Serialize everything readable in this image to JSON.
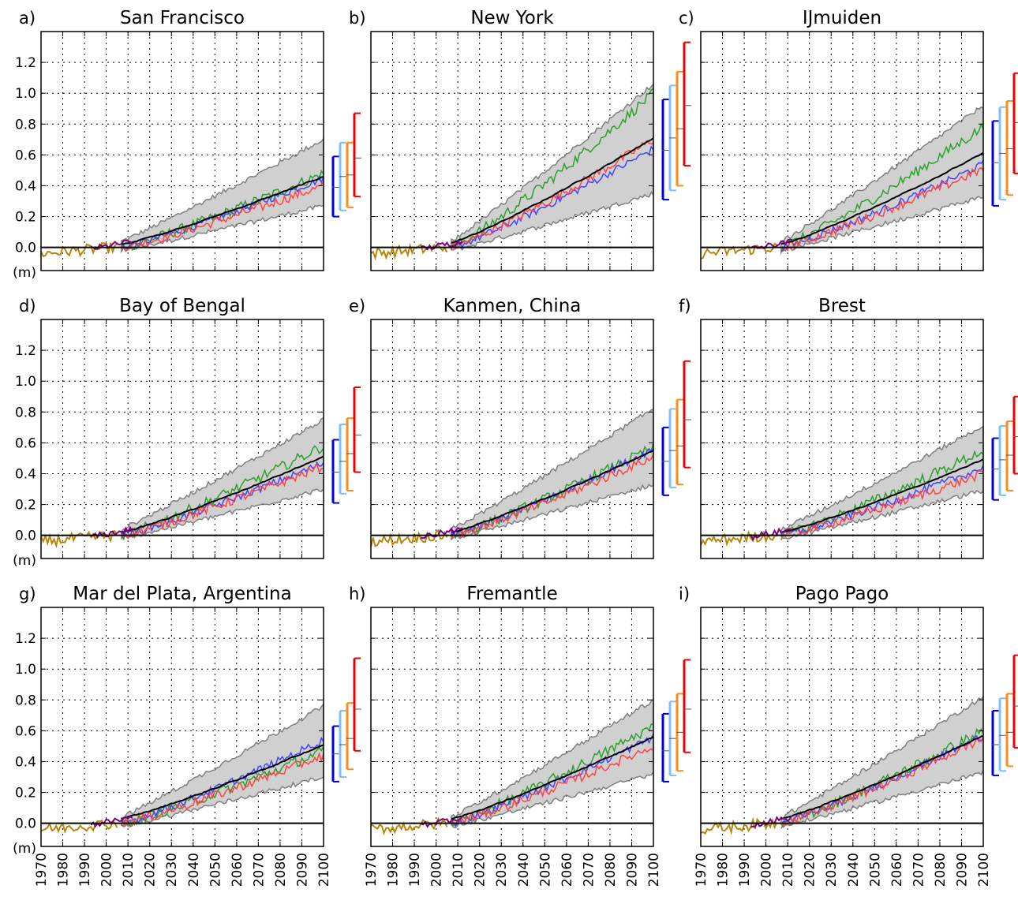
{
  "chart_data": {
    "type": "line",
    "xlim": [
      1970,
      2100
    ],
    "ylim": [
      -0.15,
      1.4
    ],
    "x_ticks": [
      "1970",
      "1980",
      "1990",
      "2000",
      "2010",
      "2020",
      "2030",
      "2040",
      "2050",
      "2060",
      "2070",
      "2080",
      "2090",
      "2100"
    ],
    "y_ticks": [
      "0.0",
      "0.2",
      "0.4",
      "0.6",
      "0.8",
      "1.0",
      "1.2"
    ],
    "y_unit_label": "(m)",
    "grid": true,
    "colors": {
      "observed_tide_gauge": "#b8860b",
      "observed_altimetry": "#800080",
      "model_mean": "#000000",
      "model_range_fill": "#d0d0d0",
      "model_range_edge": "#808080",
      "model_green": "#2ca02c",
      "model_blue": "#4444ff",
      "model_red": "#ff4444",
      "bar_rcp26": "#0000dd",
      "bar_rcp45": "#7fbfff",
      "bar_rcp60": "#ff8c1a",
      "bar_rcp85": "#ee0000",
      "zero_line": "#000000"
    },
    "panels": [
      {
        "letter": "a)",
        "title": "San Francisco",
        "mean_2010": 0.02,
        "mean_2100": 0.46,
        "lo_2100": 0.27,
        "hi_2100": 0.7,
        "green_2100": 0.48,
        "blue_2100": 0.45,
        "red_2100": 0.4,
        "obs_start": 1970,
        "bars": [
          [
            0.2,
            0.59,
            0.39
          ],
          [
            0.24,
            0.68,
            0.46
          ],
          [
            0.26,
            0.68,
            0.47
          ],
          [
            0.33,
            0.87,
            0.58
          ]
        ]
      },
      {
        "letter": "b)",
        "title": "New York",
        "mean_2010": 0.03,
        "mean_2100": 0.71,
        "lo_2100": 0.35,
        "hi_2100": 1.06,
        "green_2100": 1.0,
        "blue_2100": 0.64,
        "red_2100": 0.7,
        "obs_start": 1970,
        "bars": [
          [
            0.31,
            0.96,
            0.63
          ],
          [
            0.37,
            1.05,
            0.71
          ],
          [
            0.4,
            1.14,
            0.77
          ],
          [
            0.53,
            1.33,
            0.92
          ]
        ]
      },
      {
        "letter": "c)",
        "title": "IJmuiden",
        "mean_2010": 0.02,
        "mean_2100": 0.61,
        "lo_2100": 0.33,
        "hi_2100": 0.92,
        "green_2100": 0.78,
        "blue_2100": 0.54,
        "red_2100": 0.51,
        "obs_start": 1970,
        "bars": [
          [
            0.27,
            0.82,
            0.55
          ],
          [
            0.31,
            0.91,
            0.61
          ],
          [
            0.34,
            0.95,
            0.64
          ],
          [
            0.48,
            1.13,
            0.81
          ]
        ]
      },
      {
        "letter": "d)",
        "title": "Bay of Bengal",
        "mean_2010": 0.02,
        "mean_2100": 0.51,
        "lo_2100": 0.3,
        "hi_2100": 0.75,
        "green_2100": 0.58,
        "blue_2100": 0.47,
        "red_2100": 0.45,
        "obs_start": 1970,
        "bars": [
          [
            0.21,
            0.62,
            0.41
          ],
          [
            0.27,
            0.72,
            0.48
          ],
          [
            0.29,
            0.76,
            0.53
          ],
          [
            0.41,
            0.96,
            0.65
          ]
        ]
      },
      {
        "letter": "e)",
        "title": "Kanmen, China",
        "mean_2010": 0.02,
        "mean_2100": 0.55,
        "lo_2100": 0.33,
        "hi_2100": 0.82,
        "green_2100": 0.57,
        "blue_2100": 0.56,
        "red_2100": 0.51,
        "obs_start": 1970,
        "bars": [
          [
            0.26,
            0.7,
            0.48
          ],
          [
            0.31,
            0.82,
            0.55
          ],
          [
            0.33,
            0.88,
            0.58
          ],
          [
            0.44,
            1.13,
            0.75
          ]
        ]
      },
      {
        "letter": "f)",
        "title": "Brest",
        "mean_2010": 0.02,
        "mean_2100": 0.49,
        "lo_2100": 0.29,
        "hi_2100": 0.71,
        "green_2100": 0.55,
        "blue_2100": 0.44,
        "red_2100": 0.4,
        "obs_start": 1970,
        "bars": [
          [
            0.23,
            0.63,
            0.43
          ],
          [
            0.26,
            0.71,
            0.49
          ],
          [
            0.29,
            0.74,
            0.52
          ],
          [
            0.4,
            0.9,
            0.64
          ]
        ]
      },
      {
        "letter": "g)",
        "title": "Mar del Plata, Argentina",
        "mean_2010": 0.03,
        "mean_2100": 0.51,
        "lo_2100": 0.3,
        "hi_2100": 0.76,
        "green_2100": 0.47,
        "blue_2100": 0.54,
        "red_2100": 0.44,
        "obs_start": 1970,
        "bars": [
          [
            0.27,
            0.63,
            0.45
          ],
          [
            0.3,
            0.73,
            0.51
          ],
          [
            0.35,
            0.78,
            0.55
          ],
          [
            0.47,
            1.07,
            0.74
          ]
        ]
      },
      {
        "letter": "h)",
        "title": "Fremantle",
        "mean_2010": 0.03,
        "mean_2100": 0.56,
        "lo_2100": 0.32,
        "hi_2100": 0.8,
        "green_2100": 0.63,
        "blue_2100": 0.56,
        "red_2100": 0.5,
        "obs_start": 1970,
        "bars": [
          [
            0.27,
            0.71,
            0.47
          ],
          [
            0.31,
            0.79,
            0.55
          ],
          [
            0.34,
            0.84,
            0.59
          ],
          [
            0.46,
            1.06,
            0.74
          ]
        ]
      },
      {
        "letter": "i)",
        "title": "Pago Pago",
        "mean_2010": 0.03,
        "mean_2100": 0.57,
        "lo_2100": 0.33,
        "hi_2100": 0.82,
        "green_2100": 0.6,
        "blue_2100": 0.57,
        "red_2100": 0.55,
        "obs_start": 1970,
        "bars": [
          [
            0.31,
            0.73,
            0.51
          ],
          [
            0.34,
            0.81,
            0.57
          ],
          [
            0.37,
            0.84,
            0.59
          ],
          [
            0.49,
            1.09,
            0.76
          ]
        ]
      }
    ]
  }
}
